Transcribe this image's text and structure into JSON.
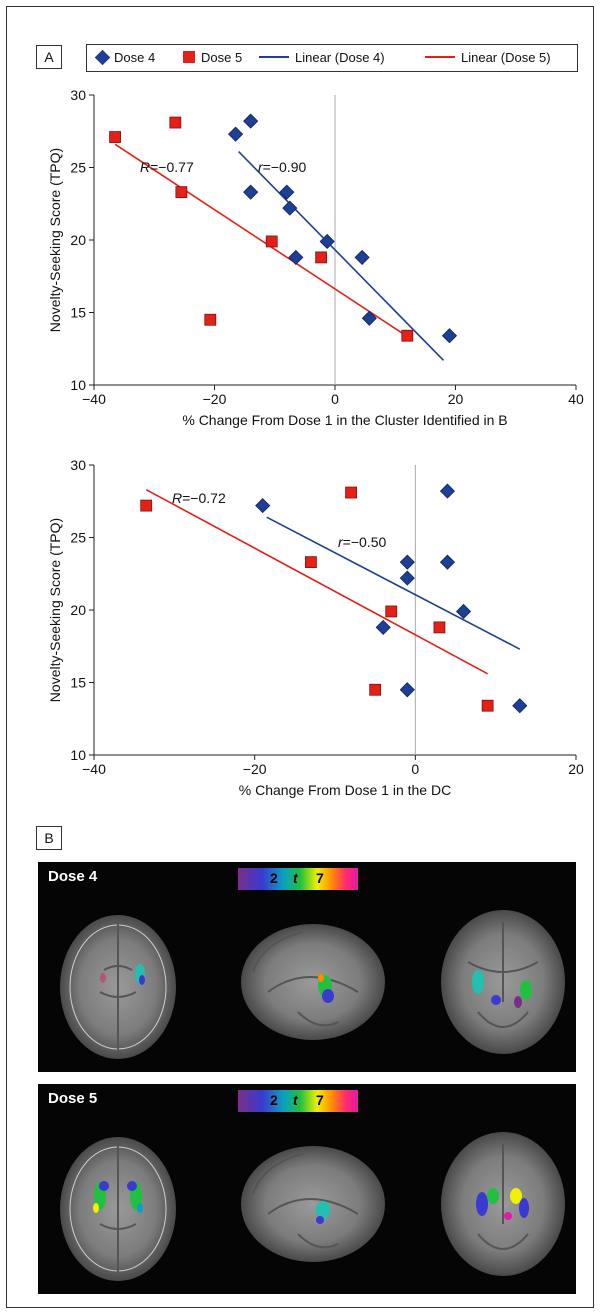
{
  "panel_a_tag": "A",
  "panel_b_tag": "B",
  "legend": {
    "dose4": "Dose 4",
    "dose5": "Dose 5",
    "linear4": "Linear (Dose 4)",
    "linear5": "Linear (Dose 5)"
  },
  "colors": {
    "dose4": "#1f3f95",
    "dose5": "#e32119",
    "axis": "#222222",
    "zero_line": "#aaaaaa"
  },
  "chart_data": [
    {
      "type": "scatter",
      "xlabel": "% Change From Dose 1 in the Cluster Identified in B",
      "ylabel": "Novelty-Seeking Score (TPQ)",
      "xlim": [
        -40,
        40
      ],
      "ylim": [
        10,
        30
      ],
      "xticks": [
        "−40",
        "−20",
        "0",
        "20",
        "40"
      ],
      "yticks": [
        "10",
        "15",
        "20",
        "25",
        "30"
      ],
      "annotations": {
        "dose5_corr": "R=−0.77",
        "dose4_corr": "r=−0.90"
      },
      "series": [
        {
          "name": "Dose 4",
          "marker": "diamond",
          "points": [
            [
              -16.5,
              27.3
            ],
            [
              -14,
              28.2
            ],
            [
              -14,
              23.3
            ],
            [
              -8,
              23.3
            ],
            [
              -7.5,
              22.2
            ],
            [
              -6.5,
              18.8
            ],
            [
              -1.3,
              19.9
            ],
            [
              4.5,
              18.8
            ],
            [
              5.7,
              14.6
            ],
            [
              19,
              13.4
            ]
          ]
        },
        {
          "name": "Dose 5",
          "marker": "square",
          "points": [
            [
              -36.5,
              27.1
            ],
            [
              -26.5,
              28.1
            ],
            [
              -25.5,
              23.3
            ],
            [
              -20.7,
              14.5
            ],
            [
              -10.5,
              19.9
            ],
            [
              -2.3,
              18.8
            ],
            [
              12,
              13.4
            ]
          ]
        }
      ],
      "fits": [
        {
          "name": "Linear (Dose 4)",
          "x": [
            -16,
            18
          ],
          "y": [
            26.1,
            11.7
          ]
        },
        {
          "name": "Linear (Dose 5)",
          "x": [
            -36.5,
            11.8
          ],
          "y": [
            26.6,
            13.4
          ]
        }
      ]
    },
    {
      "type": "scatter",
      "xlabel": "% Change From Dose 1 in the DC",
      "ylabel": "Novelty-Seeking Score (TPQ)",
      "xlim": [
        -40,
        20
      ],
      "ylim": [
        10,
        30
      ],
      "xticks": [
        "−40",
        "−20",
        "0",
        "20"
      ],
      "yticks": [
        "10",
        "15",
        "20",
        "25",
        "30"
      ],
      "annotations": {
        "dose5_corr": "R=−0.72",
        "dose4_corr": "r=−0.50"
      },
      "series": [
        {
          "name": "Dose 4",
          "marker": "diamond",
          "points": [
            [
              -19,
              27.2
            ],
            [
              -4,
              18.8
            ],
            [
              -1,
              23.3
            ],
            [
              -1,
              22.2
            ],
            [
              -1,
              14.5
            ],
            [
              4,
              28.2
            ],
            [
              4,
              23.3
            ],
            [
              6,
              19.9
            ],
            [
              13,
              13.4
            ]
          ]
        },
        {
          "name": "Dose 5",
          "marker": "square",
          "points": [
            [
              -33.5,
              27.2
            ],
            [
              -13,
              23.3
            ],
            [
              -8,
              28.1
            ],
            [
              -5,
              14.5
            ],
            [
              -3,
              19.9
            ],
            [
              3,
              18.8
            ],
            [
              9,
              13.4
            ]
          ]
        }
      ],
      "fits": [
        {
          "name": "Linear (Dose 4)",
          "x": [
            -18.5,
            13
          ],
          "y": [
            26.4,
            17.3
          ]
        },
        {
          "name": "Linear (Dose 5)",
          "x": [
            -33.5,
            9
          ],
          "y": [
            28.3,
            15.6
          ]
        }
      ]
    }
  ],
  "brain_panels": [
    {
      "label": "Dose 4",
      "colorbar": {
        "min": "2",
        "mid": "t",
        "max": "7"
      }
    },
    {
      "label": "Dose 5",
      "colorbar": {
        "min": "2",
        "mid": "t",
        "max": "7"
      }
    }
  ]
}
